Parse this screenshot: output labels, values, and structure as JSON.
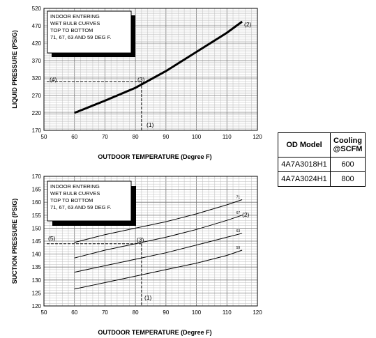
{
  "chart_data": [
    {
      "type": "line",
      "xlabel": "OUTDOOR TEMPERATURE (Degree F)",
      "ylabel": "LIQUID PRESSURE (PSIG)",
      "xlim": [
        50,
        120
      ],
      "ylim": [
        170,
        520
      ],
      "xticks": [
        "50",
        "60",
        "70",
        "80",
        "90",
        "100",
        "110",
        "120"
      ],
      "yticks": [
        "170",
        "220",
        "270",
        "320",
        "370",
        "420",
        "470",
        "520"
      ],
      "grid": true,
      "series": [
        {
          "x": [
            60,
            70,
            80,
            90,
            100,
            110,
            115
          ],
          "y": [
            220,
            255,
            292,
            340,
            395,
            450,
            482
          ]
        }
      ],
      "reference_lines": {
        "x": 82,
        "y": 310
      },
      "legend_box": [
        "INDOOR ENTERING",
        "WET BULB CURVES",
        "TOP TO BOTTOM",
        "71, 67, 63 AND 59 DEG F."
      ],
      "annotations": [
        "(1)",
        "(2)",
        "(3)",
        "(4)"
      ]
    },
    {
      "type": "line",
      "xlabel": "OUTDOOR TEMPERATURE (Degree F)",
      "ylabel": "SUCTION PRESSURE (PSIG)",
      "xlim": [
        50,
        120
      ],
      "ylim": [
        120,
        170
      ],
      "xticks": [
        "50",
        "60",
        "70",
        "80",
        "90",
        "100",
        "110",
        "120"
      ],
      "yticks": [
        "120",
        "125",
        "130",
        "135",
        "140",
        "145",
        "150",
        "155",
        "160",
        "165",
        "170"
      ],
      "grid": true,
      "series": [
        {
          "name": "71",
          "x": [
            60,
            70,
            80,
            90,
            100,
            110,
            115
          ],
          "y": [
            144.5,
            147.5,
            150,
            152.5,
            155.5,
            159,
            161
          ]
        },
        {
          "name": "67",
          "x": [
            60,
            70,
            80,
            90,
            100,
            110,
            115
          ],
          "y": [
            138.5,
            141.5,
            144,
            146.5,
            149.5,
            153,
            155
          ]
        },
        {
          "name": "63",
          "x": [
            60,
            70,
            80,
            90,
            100,
            110,
            115
          ],
          "y": [
            133,
            135.5,
            138,
            140.5,
            143.5,
            146.5,
            148
          ]
        },
        {
          "name": "59",
          "x": [
            60,
            70,
            80,
            90,
            100,
            110,
            115
          ],
          "y": [
            126.5,
            129,
            131.5,
            134,
            136.5,
            139.5,
            141.5
          ]
        }
      ],
      "reference_lines": {
        "x": 82,
        "y": 144
      },
      "legend_box": [
        "INDOOR ENTERING",
        "WET BULB CURVES",
        "TOP TO BOTTOM",
        "71, 67, 63 AND 59 DEG F."
      ],
      "annotations": [
        "(1)",
        "(2)",
        "(3)",
        "(5)"
      ]
    }
  ],
  "model_table": {
    "headers": [
      "OD Model",
      "Cooling\n@SCFM"
    ],
    "rows": [
      [
        "4A7A3018H1",
        "600"
      ],
      [
        "4A7A3024H1",
        "800"
      ]
    ]
  }
}
